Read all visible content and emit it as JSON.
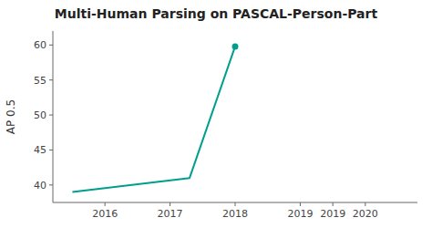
{
  "chart_data": {
    "type": "line",
    "title": "Multi-Human Parsing on PASCAL-Person-Part",
    "ylabel": "AP 0.5",
    "x": [
      2015.5,
      2017.3,
      2018.0
    ],
    "values": [
      39.0,
      41.0,
      59.8
    ],
    "color": "#009e8e",
    "marker": "circle",
    "xlim": [
      2015.2,
      2020.8
    ],
    "ylim": [
      37.5,
      62
    ],
    "xticks": [
      2016,
      2017,
      2018,
      2019,
      {
        "value": 2019.5,
        "label": "2019"
      },
      2020
    ],
    "yticks": [
      40,
      45,
      50,
      55,
      60
    ],
    "grid": false
  }
}
